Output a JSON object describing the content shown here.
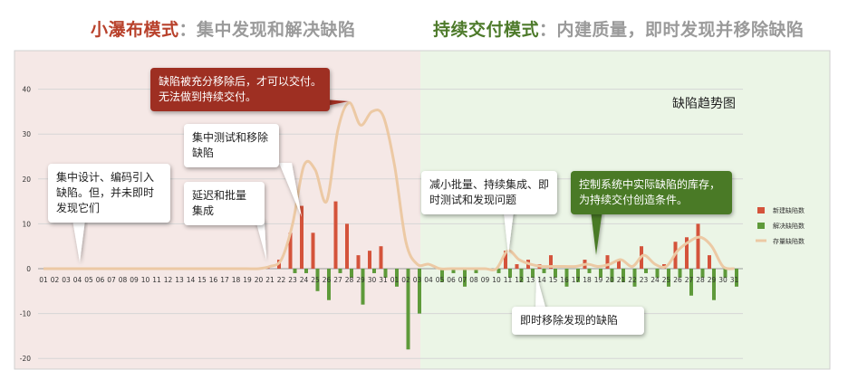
{
  "header": {
    "left_mode": "小瀑布模式",
    "left_colon": "：",
    "left_desc": "集中发现和解决缺陷",
    "right_mode": "持续交付模式",
    "right_colon": "：",
    "right_desc": "内建质量，即时发现并移除缺陷"
  },
  "callouts": {
    "c1": "集中设计、编码引入缺陷。但，并未即时发现它们",
    "c2": "集中测试和移除缺陷",
    "c3": "延迟和批量集成",
    "c4": "缺陷被充分移除后，才可以交付。无法做到持续交付。",
    "c5": "减小批量、持续集成、即时测试和发现问题",
    "c6": "即时移除发现的缺陷",
    "c7": "控制系统中实际缺陷的库存，为持续交付创造条件。"
  },
  "colors": {
    "waterfall_bg": "#f5e8e6",
    "cd_bg": "#ebf5e6",
    "new_defects": "#d4533b",
    "fixed_defects": "#5e9a3a",
    "inventory": "#ecc9a4",
    "red_callout": "#9e2f22",
    "green_callout": "#4a7a26"
  },
  "chart_data": {
    "type": "bar",
    "title": "缺陷趋势图",
    "categories": [
      "01",
      "02",
      "03",
      "04",
      "05",
      "06",
      "07",
      "08",
      "09",
      "10",
      "11",
      "12",
      "13",
      "14",
      "15",
      "16",
      "17",
      "18",
      "19",
      "20",
      "21",
      "22",
      "23",
      "24",
      "25",
      "26",
      "27",
      "28",
      "29",
      "30",
      "31",
      "01",
      "02",
      "03",
      "04",
      "05",
      "06",
      "07",
      "08",
      "09",
      "10",
      "11",
      "12",
      "13",
      "14",
      "15",
      "16",
      "17",
      "18",
      "19",
      "20",
      "21",
      "22",
      "23",
      "24",
      "25",
      "26",
      "27",
      "28",
      "29",
      "30",
      "31"
    ],
    "ylim": [
      -20,
      40
    ],
    "yticks": [
      -20,
      -10,
      0,
      10,
      20,
      30,
      40
    ],
    "grid": true,
    "legend_position": "right",
    "series": [
      {
        "name": "新建缺陷数",
        "kind": "bar",
        "values": [
          0,
          0,
          0,
          0,
          0,
          0,
          0,
          0,
          0,
          0,
          0,
          0,
          0,
          0,
          0,
          0,
          0,
          0,
          0,
          0,
          0.5,
          2,
          8,
          14,
          8,
          0,
          15,
          10,
          3,
          4,
          5,
          0,
          0,
          0,
          0,
          0,
          0,
          0,
          0,
          0,
          0,
          4,
          1,
          2,
          1,
          3,
          0,
          0,
          2,
          0,
          3,
          2,
          0,
          5,
          0,
          1,
          6,
          7,
          10,
          3,
          0,
          0
        ]
      },
      {
        "name": "解决缺陷数",
        "kind": "bar",
        "values": [
          0,
          0,
          0,
          0,
          0,
          0,
          0,
          0,
          0,
          0,
          0,
          0,
          0,
          0,
          0,
          0,
          0,
          0,
          0,
          0,
          0,
          0,
          -1,
          -1,
          -5,
          -7,
          -1,
          -2,
          -8,
          -1,
          -2,
          -4,
          -18,
          -10,
          0,
          -3,
          -1,
          -4,
          -1,
          0,
          -1,
          -2,
          -3,
          -2,
          -1,
          -2,
          -4,
          -3,
          -1,
          -2,
          -3,
          -3,
          -4,
          -1,
          -2,
          -4,
          -2,
          -6,
          -2,
          -7,
          -2,
          -4
        ]
      },
      {
        "name": "存量缺陷数",
        "kind": "line",
        "values": [
          0,
          0,
          0,
          0,
          0,
          0,
          0,
          0,
          0,
          0,
          0,
          0,
          0,
          0,
          0,
          0,
          0,
          0,
          0,
          0,
          0.5,
          2,
          10,
          23,
          22,
          15,
          31,
          37,
          32,
          35,
          34,
          23,
          6,
          1,
          1,
          0,
          0,
          0,
          0,
          0,
          0,
          4,
          2,
          1,
          0.5,
          0.5,
          0.5,
          0.5,
          1,
          0.5,
          1,
          2,
          0.5,
          3,
          1,
          0.5,
          4,
          6,
          7,
          5,
          0.5,
          0
        ]
      }
    ]
  }
}
